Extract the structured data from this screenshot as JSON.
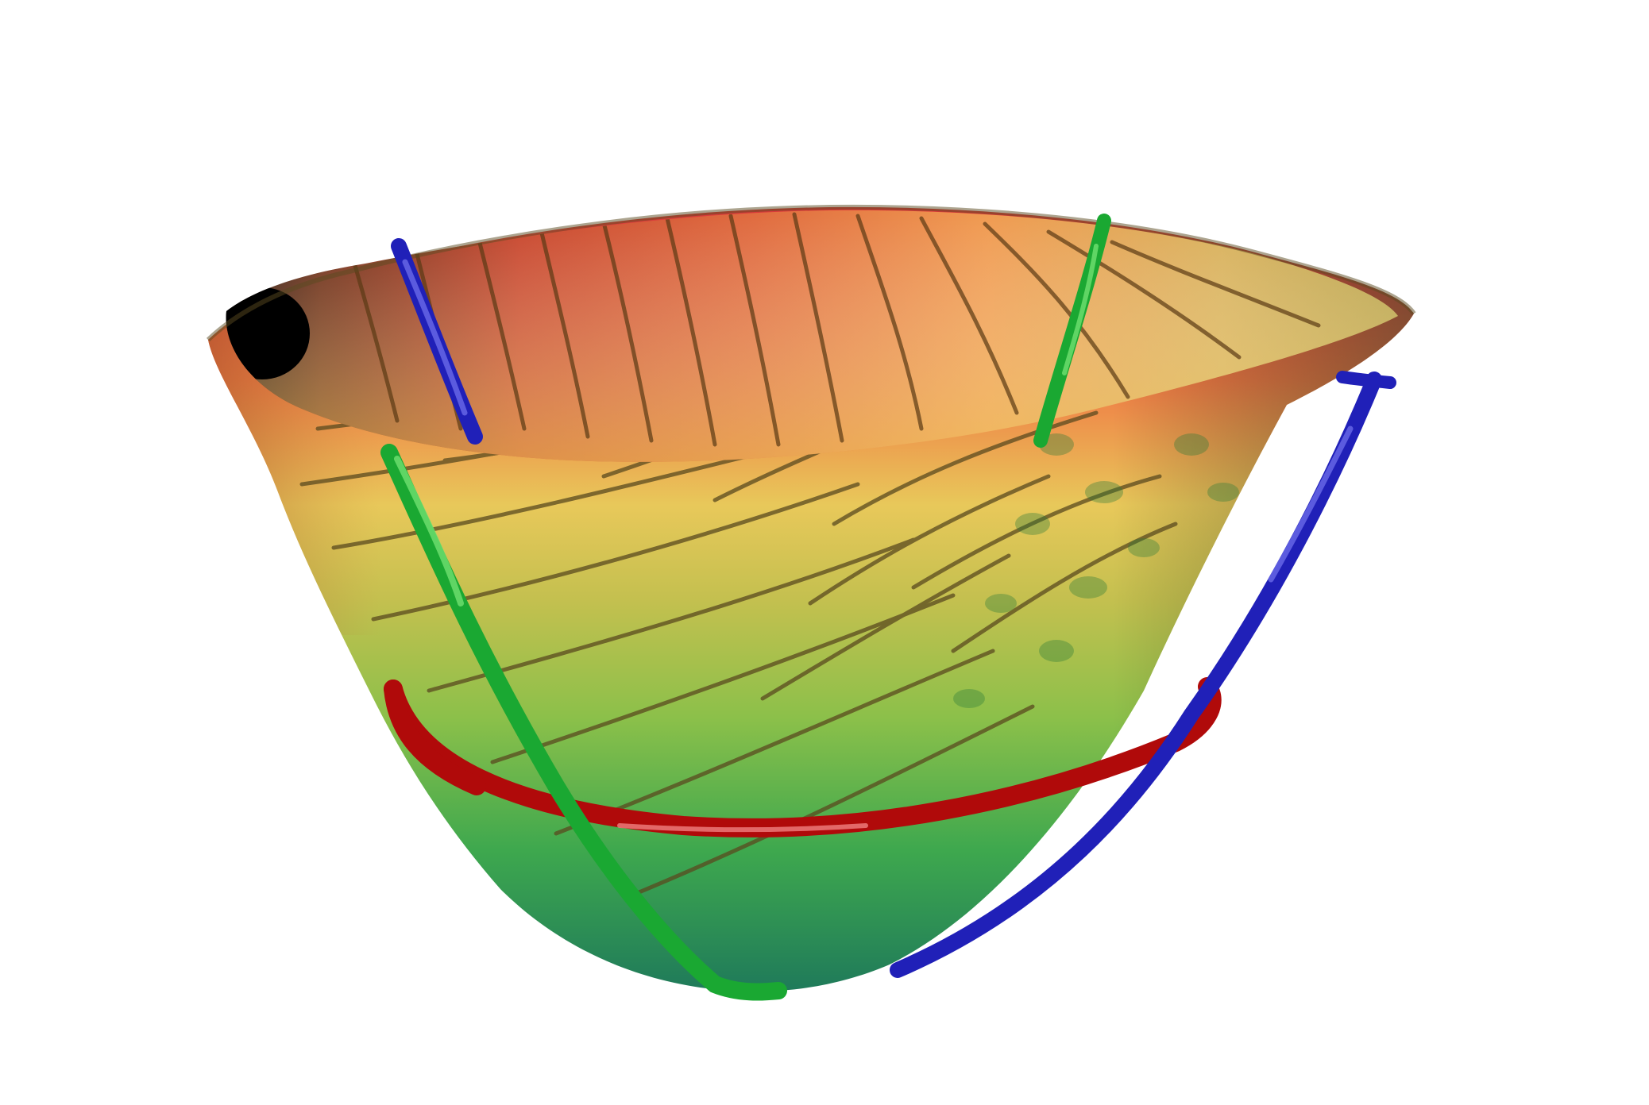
{
  "scene": {
    "background_color": "#ffffff",
    "subject": "bowl-mesh",
    "palette": {
      "rim_dark": "#1a0a05",
      "rim_brown": "#7a3418",
      "top_red": "#d8383a",
      "top_orange": "#f07a45",
      "top_yellow": "#e8c85a",
      "mid_yellow_green": "#c4c04f",
      "mid_green": "#8cc04a",
      "lower_green": "#3ea84e",
      "bottom_teal": "#1f7a5a",
      "crack_line": "#5a4a1f",
      "curve_green": "#1aa832",
      "curve_blue": "#2020b8",
      "curve_red": "#b00a0a"
    }
  }
}
